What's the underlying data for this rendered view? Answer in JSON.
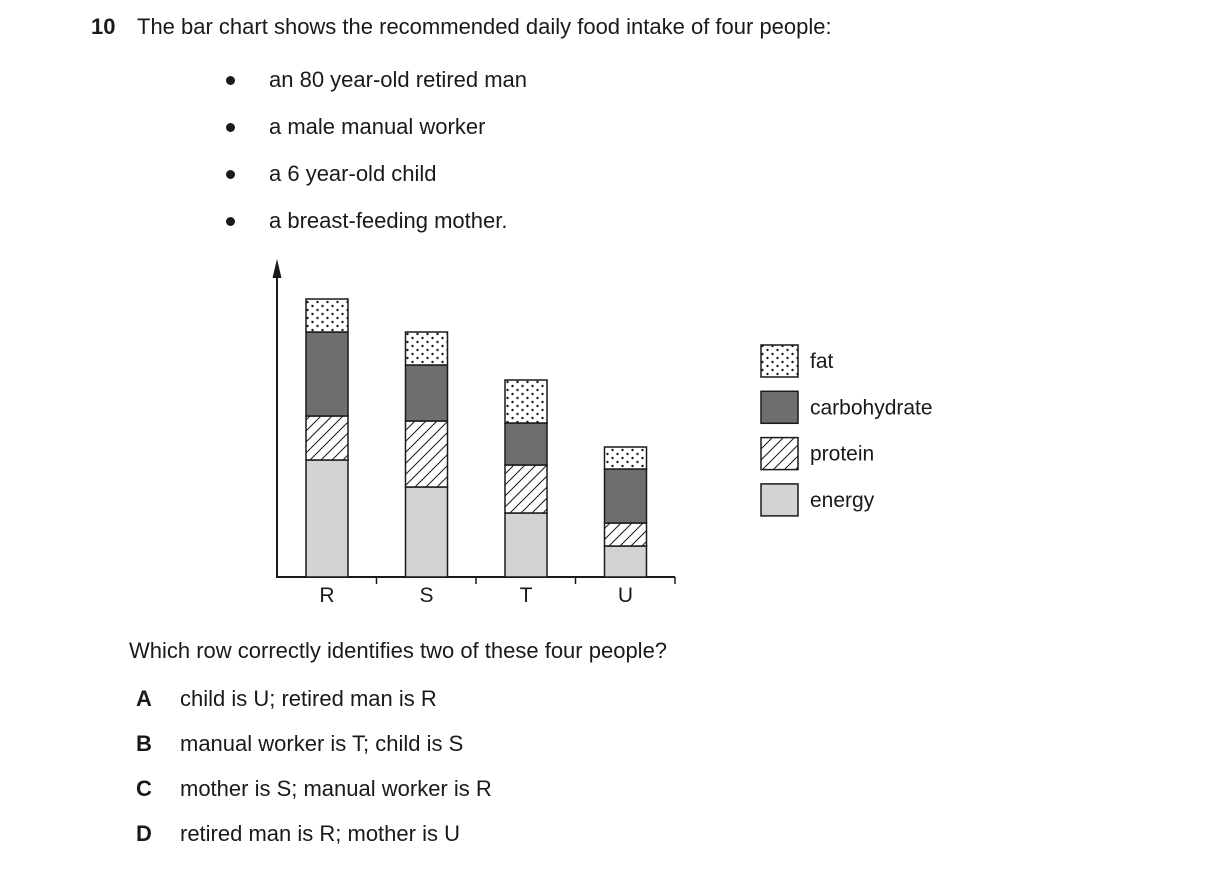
{
  "question": {
    "number": "10",
    "stem": "The bar chart shows the recommended daily food intake of four people:",
    "bullets": [
      "an 80 year-old retired man",
      "a male manual worker",
      "a 6 year-old child",
      "a breast-feeding mother."
    ],
    "prompt": "Which row correctly identifies two of these four people?",
    "options": [
      {
        "letter": "A",
        "text": "child is U; retired man is R"
      },
      {
        "letter": "B",
        "text": "manual worker is T; child is S"
      },
      {
        "letter": "C",
        "text": "mother is S; manual worker is R"
      },
      {
        "letter": "D",
        "text": "retired man is R; mother is U"
      }
    ]
  },
  "chart_data": {
    "type": "bar",
    "stacked": true,
    "categories": [
      "R",
      "S",
      "T",
      "U"
    ],
    "series": [
      {
        "name": "energy",
        "values": [
          117,
          90,
          64,
          31
        ],
        "pattern": "solid-light",
        "color": "#d1d3d4"
      },
      {
        "name": "protein",
        "values": [
          44,
          66,
          48,
          23
        ],
        "pattern": "hatch"
      },
      {
        "name": "carbohydrate",
        "values": [
          84,
          56,
          42,
          54
        ],
        "pattern": "solid-dark",
        "color": "#6d6e70"
      },
      {
        "name": "fat",
        "values": [
          33,
          33,
          43,
          22
        ],
        "pattern": "dots"
      }
    ],
    "title": "",
    "xlabel": "",
    "ylabel": "",
    "ylim": [
      0,
      300
    ],
    "y_ticks_shown": false,
    "grid": false,
    "legend": {
      "placement": "right",
      "order": [
        "fat",
        "carbohydrate",
        "protein",
        "energy"
      ]
    }
  }
}
